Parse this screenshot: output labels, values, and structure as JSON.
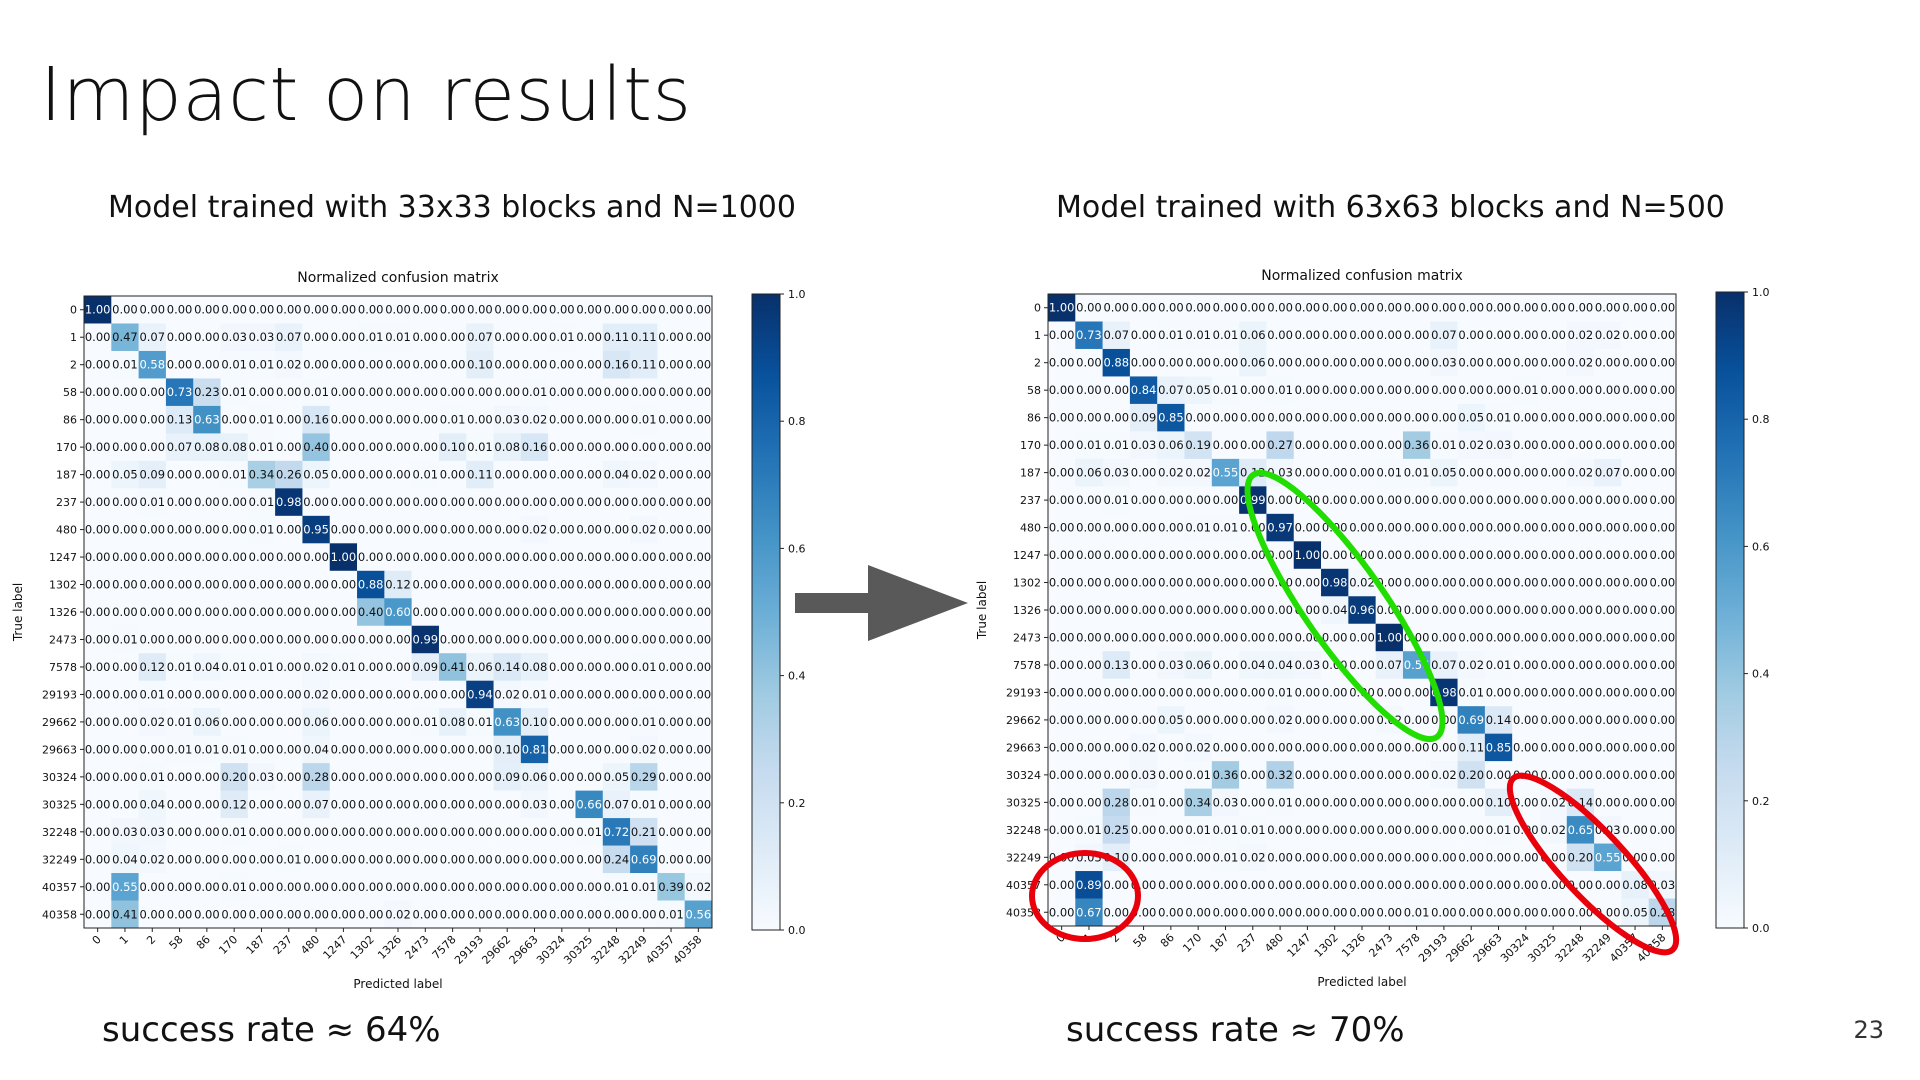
{
  "slide": {
    "title": "Impact on results",
    "page_number": "23",
    "left_heading": "Model trained with 33x33 blocks and N=1000",
    "right_heading": "Model trained with 63x63 blocks and N=500",
    "left_success": "success rate ≈ 64%",
    "right_success": "success rate ≈ 70%",
    "arrow_color": "#595959",
    "highlight_colors": {
      "green": "#22dd00",
      "red": "#e8000b"
    }
  },
  "chart_data": [
    {
      "type": "heatmap",
      "title": "Normalized confusion matrix",
      "xlabel": "Predicted label",
      "ylabel": "True label",
      "labels": [
        "0",
        "1",
        "2",
        "58",
        "86",
        "170",
        "187",
        "237",
        "480",
        "1247",
        "1302",
        "1326",
        "2473",
        "7578",
        "29193",
        "29662",
        "29663",
        "30324",
        "30325",
        "32248",
        "32249",
        "40357",
        "40358"
      ],
      "colorbar": {
        "min": 0.0,
        "max": 1.0,
        "ticks": [
          "0.0",
          "0.2",
          "0.4",
          "0.6",
          "0.8",
          "1.0"
        ],
        "colormap": "Blues"
      },
      "matrix": [
        [
          1.0,
          0.0,
          0.0,
          0.0,
          0.0,
          0.0,
          0.0,
          0.0,
          0.0,
          0.0,
          0.0,
          0.0,
          0.0,
          0.0,
          0.0,
          0.0,
          0.0,
          0.0,
          0.0,
          0.0,
          0.0,
          0.0,
          0.0
        ],
        [
          0.0,
          0.47,
          0.07,
          0.0,
          0.0,
          0.03,
          0.03,
          0.07,
          0.0,
          0.0,
          0.01,
          0.01,
          0.0,
          0.0,
          0.07,
          0.0,
          0.0,
          0.01,
          0.0,
          0.11,
          0.11,
          0.0,
          0.0
        ],
        [
          0.0,
          0.01,
          0.58,
          0.0,
          0.0,
          0.01,
          0.01,
          0.02,
          0.0,
          0.0,
          0.0,
          0.0,
          0.0,
          0.0,
          0.1,
          0.0,
          0.0,
          0.0,
          0.0,
          0.16,
          0.11,
          0.0,
          0.0
        ],
        [
          0.0,
          0.0,
          0.0,
          0.73,
          0.23,
          0.01,
          0.0,
          0.0,
          0.01,
          0.0,
          0.0,
          0.0,
          0.0,
          0.0,
          0.0,
          0.0,
          0.01,
          0.0,
          0.0,
          0.0,
          0.0,
          0.0,
          0.0
        ],
        [
          0.0,
          0.0,
          0.0,
          0.13,
          0.63,
          0.0,
          0.01,
          0.0,
          0.16,
          0.0,
          0.0,
          0.0,
          0.0,
          0.01,
          0.0,
          0.03,
          0.02,
          0.0,
          0.0,
          0.0,
          0.01,
          0.0,
          0.0
        ],
        [
          0.0,
          0.0,
          0.0,
          0.07,
          0.08,
          0.08,
          0.01,
          0.0,
          0.4,
          0.0,
          0.0,
          0.0,
          0.0,
          0.1,
          0.01,
          0.08,
          0.16,
          0.0,
          0.0,
          0.0,
          0.0,
          0.0,
          0.0
        ],
        [
          0.0,
          0.05,
          0.09,
          0.0,
          0.0,
          0.01,
          0.34,
          0.26,
          0.05,
          0.0,
          0.0,
          0.0,
          0.01,
          0.0,
          0.11,
          0.0,
          0.0,
          0.0,
          0.0,
          0.04,
          0.02,
          0.0,
          0.0
        ],
        [
          0.0,
          0.0,
          0.01,
          0.0,
          0.0,
          0.0,
          0.01,
          0.98,
          0.0,
          0.0,
          0.0,
          0.0,
          0.0,
          0.0,
          0.0,
          0.0,
          0.0,
          0.0,
          0.0,
          0.0,
          0.0,
          0.0,
          0.0
        ],
        [
          0.0,
          0.0,
          0.0,
          0.0,
          0.0,
          0.0,
          0.01,
          0.0,
          0.95,
          0.0,
          0.0,
          0.0,
          0.0,
          0.0,
          0.0,
          0.0,
          0.02,
          0.0,
          0.0,
          0.0,
          0.02,
          0.0,
          0.0
        ],
        [
          0.0,
          0.0,
          0.0,
          0.0,
          0.0,
          0.0,
          0.0,
          0.0,
          0.0,
          1.0,
          0.0,
          0.0,
          0.0,
          0.0,
          0.0,
          0.0,
          0.0,
          0.0,
          0.0,
          0.0,
          0.0,
          0.0,
          0.0
        ],
        [
          0.0,
          0.0,
          0.0,
          0.0,
          0.0,
          0.0,
          0.0,
          0.0,
          0.0,
          0.0,
          0.88,
          0.12,
          0.0,
          0.0,
          0.0,
          0.0,
          0.0,
          0.0,
          0.0,
          0.0,
          0.0,
          0.0,
          0.0
        ],
        [
          0.0,
          0.0,
          0.0,
          0.0,
          0.0,
          0.0,
          0.0,
          0.0,
          0.0,
          0.0,
          0.4,
          0.6,
          0.0,
          0.0,
          0.0,
          0.0,
          0.0,
          0.0,
          0.0,
          0.0,
          0.0,
          0.0,
          0.0
        ],
        [
          0.0,
          0.01,
          0.0,
          0.0,
          0.0,
          0.0,
          0.0,
          0.0,
          0.0,
          0.0,
          0.0,
          0.0,
          0.99,
          0.0,
          0.0,
          0.0,
          0.0,
          0.0,
          0.0,
          0.0,
          0.0,
          0.0,
          0.0
        ],
        [
          0.0,
          0.0,
          0.12,
          0.01,
          0.04,
          0.01,
          0.01,
          0.0,
          0.02,
          0.01,
          0.0,
          0.0,
          0.09,
          0.41,
          0.06,
          0.14,
          0.08,
          0.0,
          0.0,
          0.0,
          0.01,
          0.0,
          0.0
        ],
        [
          0.0,
          0.0,
          0.01,
          0.0,
          0.0,
          0.0,
          0.0,
          0.0,
          0.02,
          0.0,
          0.0,
          0.0,
          0.0,
          0.0,
          0.94,
          0.02,
          0.01,
          0.0,
          0.0,
          0.0,
          0.0,
          0.0,
          0.0
        ],
        [
          0.0,
          0.0,
          0.02,
          0.01,
          0.06,
          0.0,
          0.0,
          0.0,
          0.06,
          0.0,
          0.0,
          0.0,
          0.01,
          0.08,
          0.01,
          0.63,
          0.1,
          0.0,
          0.0,
          0.0,
          0.01,
          0.0,
          0.0
        ],
        [
          0.0,
          0.0,
          0.0,
          0.01,
          0.01,
          0.01,
          0.0,
          0.0,
          0.04,
          0.0,
          0.0,
          0.0,
          0.0,
          0.0,
          0.0,
          0.1,
          0.81,
          0.0,
          0.0,
          0.0,
          0.02,
          0.0,
          0.0
        ],
        [
          0.0,
          0.0,
          0.01,
          0.0,
          0.0,
          0.2,
          0.03,
          0.0,
          0.28,
          0.0,
          0.0,
          0.0,
          0.0,
          0.0,
          0.0,
          0.09,
          0.06,
          0.0,
          0.0,
          0.05,
          0.29,
          0.0,
          0.0
        ],
        [
          0.0,
          0.0,
          0.04,
          0.0,
          0.0,
          0.12,
          0.0,
          0.0,
          0.07,
          0.0,
          0.0,
          0.0,
          0.0,
          0.0,
          0.0,
          0.0,
          0.03,
          0.0,
          0.66,
          0.07,
          0.01,
          0.0,
          0.0
        ],
        [
          0.0,
          0.03,
          0.03,
          0.0,
          0.0,
          0.01,
          0.0,
          0.0,
          0.0,
          0.0,
          0.0,
          0.0,
          0.0,
          0.0,
          0.0,
          0.0,
          0.0,
          0.0,
          0.01,
          0.72,
          0.21,
          0.0,
          0.0
        ],
        [
          0.0,
          0.04,
          0.02,
          0.0,
          0.0,
          0.0,
          0.0,
          0.01,
          0.0,
          0.0,
          0.0,
          0.0,
          0.0,
          0.0,
          0.0,
          0.0,
          0.0,
          0.0,
          0.0,
          0.24,
          0.69,
          0.0,
          0.0
        ],
        [
          0.0,
          0.55,
          0.0,
          0.0,
          0.0,
          0.01,
          0.0,
          0.0,
          0.0,
          0.0,
          0.0,
          0.0,
          0.0,
          0.0,
          0.0,
          0.0,
          0.0,
          0.0,
          0.0,
          0.01,
          0.01,
          0.39,
          0.02
        ],
        [
          0.0,
          0.41,
          0.0,
          0.0,
          0.0,
          0.0,
          0.0,
          0.0,
          0.0,
          0.0,
          0.0,
          0.02,
          0.0,
          0.0,
          0.0,
          0.0,
          0.0,
          0.0,
          0.0,
          0.0,
          0.0,
          0.01,
          0.56
        ]
      ]
    },
    {
      "type": "heatmap",
      "title": "Normalized confusion matrix",
      "xlabel": "Predicted label",
      "ylabel": "True label",
      "labels": [
        "0",
        "1",
        "2",
        "58",
        "86",
        "170",
        "187",
        "237",
        "480",
        "1247",
        "1302",
        "1326",
        "2473",
        "7578",
        "29193",
        "29662",
        "29663",
        "30324",
        "30325",
        "32248",
        "32249",
        "40357",
        "40358"
      ],
      "colorbar": {
        "min": 0.0,
        "max": 1.0,
        "ticks": [
          "0.0",
          "0.2",
          "0.4",
          "0.6",
          "0.8",
          "1.0"
        ],
        "colormap": "Blues"
      },
      "matrix": [
        [
          1.0,
          0.0,
          0.0,
          0.0,
          0.0,
          0.0,
          0.0,
          0.0,
          0.0,
          0.0,
          0.0,
          0.0,
          0.0,
          0.0,
          0.0,
          0.0,
          0.0,
          0.0,
          0.0,
          0.0,
          0.0,
          0.0,
          0.0
        ],
        [
          0.0,
          0.73,
          0.07,
          0.0,
          0.01,
          0.01,
          0.01,
          0.06,
          0.0,
          0.0,
          0.0,
          0.0,
          0.0,
          0.0,
          0.07,
          0.0,
          0.0,
          0.0,
          0.0,
          0.02,
          0.02,
          0.0,
          0.0
        ],
        [
          0.0,
          0.0,
          0.88,
          0.0,
          0.0,
          0.0,
          0.0,
          0.06,
          0.0,
          0.0,
          0.0,
          0.0,
          0.0,
          0.0,
          0.03,
          0.0,
          0.0,
          0.0,
          0.0,
          0.02,
          0.0,
          0.0,
          0.0
        ],
        [
          0.0,
          0.0,
          0.0,
          0.84,
          0.07,
          0.05,
          0.01,
          0.0,
          0.01,
          0.0,
          0.0,
          0.0,
          0.0,
          0.0,
          0.0,
          0.0,
          0.0,
          0.01,
          0.0,
          0.0,
          0.0,
          0.0,
          0.0
        ],
        [
          0.0,
          0.0,
          0.0,
          0.09,
          0.85,
          0.0,
          0.0,
          0.0,
          0.0,
          0.0,
          0.0,
          0.0,
          0.0,
          0.0,
          0.0,
          0.05,
          0.01,
          0.0,
          0.0,
          0.0,
          0.0,
          0.0,
          0.0
        ],
        [
          0.0,
          0.01,
          0.01,
          0.03,
          0.06,
          0.19,
          0.0,
          0.0,
          0.27,
          0.0,
          0.0,
          0.0,
          0.0,
          0.36,
          0.01,
          0.02,
          0.03,
          0.0,
          0.0,
          0.0,
          0.0,
          0.0,
          0.0
        ],
        [
          0.0,
          0.06,
          0.03,
          0.0,
          0.02,
          0.02,
          0.55,
          0.12,
          0.03,
          0.0,
          0.0,
          0.0,
          0.01,
          0.01,
          0.05,
          0.0,
          0.0,
          0.0,
          0.0,
          0.02,
          0.07,
          0.0,
          0.0
        ],
        [
          0.0,
          0.0,
          0.01,
          0.0,
          0.0,
          0.0,
          0.0,
          0.99,
          0.0,
          0.0,
          0.0,
          0.0,
          0.0,
          0.0,
          0.0,
          0.0,
          0.0,
          0.0,
          0.0,
          0.0,
          0.0,
          0.0,
          0.0
        ],
        [
          0.0,
          0.0,
          0.0,
          0.0,
          0.0,
          0.01,
          0.01,
          0.0,
          0.97,
          0.0,
          0.0,
          0.0,
          0.0,
          0.0,
          0.0,
          0.0,
          0.0,
          0.0,
          0.0,
          0.0,
          0.0,
          0.0,
          0.0
        ],
        [
          0.0,
          0.0,
          0.0,
          0.0,
          0.0,
          0.0,
          0.0,
          0.0,
          0.0,
          1.0,
          0.0,
          0.0,
          0.0,
          0.0,
          0.0,
          0.0,
          0.0,
          0.0,
          0.0,
          0.0,
          0.0,
          0.0,
          0.0
        ],
        [
          0.0,
          0.0,
          0.0,
          0.0,
          0.0,
          0.0,
          0.0,
          0.0,
          0.0,
          0.0,
          0.98,
          0.02,
          0.0,
          0.0,
          0.0,
          0.0,
          0.0,
          0.0,
          0.0,
          0.0,
          0.0,
          0.0,
          0.0
        ],
        [
          0.0,
          0.0,
          0.0,
          0.0,
          0.0,
          0.0,
          0.0,
          0.0,
          0.0,
          0.0,
          0.04,
          0.96,
          0.0,
          0.0,
          0.0,
          0.0,
          0.0,
          0.0,
          0.0,
          0.0,
          0.0,
          0.0,
          0.0
        ],
        [
          0.0,
          0.0,
          0.0,
          0.0,
          0.0,
          0.0,
          0.0,
          0.0,
          0.0,
          0.0,
          0.0,
          0.0,
          1.0,
          0.0,
          0.0,
          0.0,
          0.0,
          0.0,
          0.0,
          0.0,
          0.0,
          0.0,
          0.0
        ],
        [
          0.0,
          0.0,
          0.13,
          0.0,
          0.03,
          0.06,
          0.0,
          0.04,
          0.04,
          0.03,
          0.0,
          0.0,
          0.07,
          0.56,
          0.07,
          0.02,
          0.01,
          0.0,
          0.0,
          0.0,
          0.0,
          0.0,
          0.0
        ],
        [
          0.0,
          0.0,
          0.0,
          0.0,
          0.0,
          0.0,
          0.0,
          0.0,
          0.01,
          0.0,
          0.0,
          0.0,
          0.0,
          0.0,
          0.98,
          0.01,
          0.0,
          0.0,
          0.0,
          0.0,
          0.0,
          0.0,
          0.0
        ],
        [
          0.0,
          0.0,
          0.0,
          0.0,
          0.05,
          0.0,
          0.0,
          0.0,
          0.02,
          0.0,
          0.0,
          0.0,
          0.02,
          0.0,
          0.0,
          0.69,
          0.14,
          0.0,
          0.0,
          0.0,
          0.0,
          0.0,
          0.0
        ],
        [
          0.0,
          0.0,
          0.0,
          0.02,
          0.0,
          0.02,
          0.0,
          0.0,
          0.0,
          0.0,
          0.0,
          0.0,
          0.0,
          0.0,
          0.0,
          0.11,
          0.85,
          0.0,
          0.0,
          0.0,
          0.0,
          0.0,
          0.0
        ],
        [
          0.0,
          0.0,
          0.0,
          0.03,
          0.0,
          0.01,
          0.36,
          0.0,
          0.32,
          0.0,
          0.0,
          0.0,
          0.0,
          0.0,
          0.02,
          0.2,
          0.0,
          0.0,
          0.0,
          0.0,
          0.0,
          0.0,
          0.0
        ],
        [
          0.0,
          0.0,
          0.28,
          0.01,
          0.0,
          0.34,
          0.03,
          0.0,
          0.01,
          0.0,
          0.0,
          0.0,
          0.0,
          0.0,
          0.0,
          0.0,
          0.1,
          0.0,
          0.02,
          0.14,
          0.0,
          0.0,
          0.0
        ],
        [
          0.0,
          0.01,
          0.25,
          0.0,
          0.0,
          0.01,
          0.01,
          0.01,
          0.0,
          0.0,
          0.0,
          0.0,
          0.0,
          0.0,
          0.0,
          0.0,
          0.01,
          0.0,
          0.02,
          0.65,
          0.03,
          0.0,
          0.0
        ],
        [
          0.0,
          0.03,
          0.1,
          0.0,
          0.0,
          0.0,
          0.01,
          0.02,
          0.0,
          0.0,
          0.0,
          0.0,
          0.0,
          0.0,
          0.0,
          0.0,
          0.0,
          0.0,
          0.0,
          0.2,
          0.55,
          0.0,
          0.0
        ],
        [
          0.0,
          0.89,
          0.0,
          0.0,
          0.0,
          0.0,
          0.0,
          0.0,
          0.0,
          0.0,
          0.0,
          0.0,
          0.0,
          0.0,
          0.0,
          0.0,
          0.0,
          0.0,
          0.0,
          0.0,
          0.0,
          0.08,
          0.03
        ],
        [
          0.0,
          0.67,
          0.0,
          0.0,
          0.0,
          0.0,
          0.0,
          0.0,
          0.0,
          0.0,
          0.0,
          0.0,
          0.0,
          0.01,
          0.0,
          0.0,
          0.0,
          0.0,
          0.0,
          0.0,
          0.0,
          0.05,
          0.28
        ]
      ]
    }
  ]
}
